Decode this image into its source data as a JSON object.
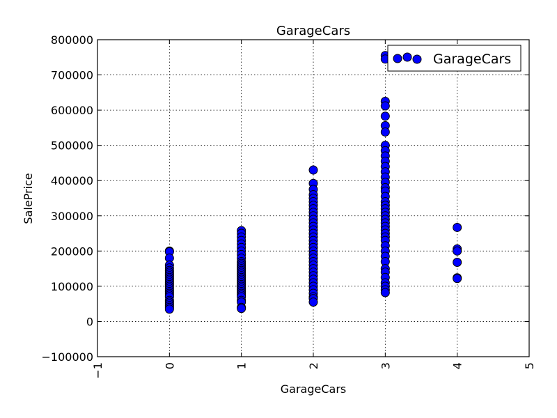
{
  "chart_data": {
    "type": "scatter",
    "title": "GarageCars",
    "xlabel": "GarageCars",
    "ylabel": "SalePrice",
    "xlim": [
      -1,
      5
    ],
    "ylim": [
      -100000,
      800000
    ],
    "xticks": [
      -1,
      0,
      1,
      2,
      3,
      4,
      5
    ],
    "yticks": [
      -100000,
      0,
      100000,
      200000,
      300000,
      400000,
      500000,
      600000,
      700000,
      800000
    ],
    "xtick_labels": [
      "−1",
      "0",
      "1",
      "2",
      "3",
      "4",
      "5"
    ],
    "ytick_labels": [
      "−100000",
      "0",
      "100000",
      "200000",
      "300000",
      "400000",
      "500000",
      "600000",
      "700000",
      "800000"
    ],
    "grid": true,
    "legend_position": "top-right",
    "marker_color": "#0000ff",
    "marker_edge_color": "#000000",
    "series": [
      {
        "name": "GarageCars",
        "points": [
          [
            0,
            200000
          ],
          [
            0,
            198000
          ],
          [
            0,
            180000
          ],
          [
            0,
            160000
          ],
          [
            0,
            152000
          ],
          [
            0,
            145000
          ],
          [
            0,
            140000
          ],
          [
            0,
            135000
          ],
          [
            0,
            130000
          ],
          [
            0,
            125000
          ],
          [
            0,
            120000
          ],
          [
            0,
            115000
          ],
          [
            0,
            110000
          ],
          [
            0,
            105000
          ],
          [
            0,
            100000
          ],
          [
            0,
            95000
          ],
          [
            0,
            90000
          ],
          [
            0,
            85000
          ],
          [
            0,
            80000
          ],
          [
            0,
            75000
          ],
          [
            0,
            70000
          ],
          [
            0,
            60000
          ],
          [
            0,
            55000
          ],
          [
            0,
            50000
          ],
          [
            0,
            45000
          ],
          [
            0,
            40000
          ],
          [
            0,
            35000
          ],
          [
            1,
            258000
          ],
          [
            1,
            250000
          ],
          [
            1,
            240000
          ],
          [
            1,
            230000
          ],
          [
            1,
            220000
          ],
          [
            1,
            210000
          ],
          [
            1,
            200000
          ],
          [
            1,
            190000
          ],
          [
            1,
            180000
          ],
          [
            1,
            170000
          ],
          [
            1,
            165000
          ],
          [
            1,
            160000
          ],
          [
            1,
            155000
          ],
          [
            1,
            150000
          ],
          [
            1,
            145000
          ],
          [
            1,
            140000
          ],
          [
            1,
            135000
          ],
          [
            1,
            130000
          ],
          [
            1,
            125000
          ],
          [
            1,
            120000
          ],
          [
            1,
            115000
          ],
          [
            1,
            110000
          ],
          [
            1,
            105000
          ],
          [
            1,
            100000
          ],
          [
            1,
            95000
          ],
          [
            1,
            90000
          ],
          [
            1,
            85000
          ],
          [
            1,
            80000
          ],
          [
            1,
            75000
          ],
          [
            1,
            70000
          ],
          [
            1,
            60000
          ],
          [
            1,
            55000
          ],
          [
            1,
            40000
          ],
          [
            1,
            37000
          ],
          [
            2,
            430000
          ],
          [
            2,
            392000
          ],
          [
            2,
            375000
          ],
          [
            2,
            360000
          ],
          [
            2,
            350000
          ],
          [
            2,
            340000
          ],
          [
            2,
            330000
          ],
          [
            2,
            320000
          ],
          [
            2,
            310000
          ],
          [
            2,
            300000
          ],
          [
            2,
            290000
          ],
          [
            2,
            280000
          ],
          [
            2,
            270000
          ],
          [
            2,
            260000
          ],
          [
            2,
            250000
          ],
          [
            2,
            240000
          ],
          [
            2,
            230000
          ],
          [
            2,
            220000
          ],
          [
            2,
            210000
          ],
          [
            2,
            200000
          ],
          [
            2,
            190000
          ],
          [
            2,
            180000
          ],
          [
            2,
            170000
          ],
          [
            2,
            160000
          ],
          [
            2,
            150000
          ],
          [
            2,
            140000
          ],
          [
            2,
            130000
          ],
          [
            2,
            120000
          ],
          [
            2,
            110000
          ],
          [
            2,
            100000
          ],
          [
            2,
            90000
          ],
          [
            2,
            80000
          ],
          [
            2,
            70000
          ],
          [
            2,
            65000
          ],
          [
            2,
            55000
          ],
          [
            3,
            755000
          ],
          [
            3,
            745000
          ],
          [
            3,
            625000
          ],
          [
            3,
            612000
          ],
          [
            3,
            583000
          ],
          [
            3,
            556000
          ],
          [
            3,
            538000
          ],
          [
            3,
            500000
          ],
          [
            3,
            485000
          ],
          [
            3,
            470000
          ],
          [
            3,
            455000
          ],
          [
            3,
            440000
          ],
          [
            3,
            425000
          ],
          [
            3,
            410000
          ],
          [
            3,
            395000
          ],
          [
            3,
            380000
          ],
          [
            3,
            370000
          ],
          [
            3,
            355000
          ],
          [
            3,
            340000
          ],
          [
            3,
            330000
          ],
          [
            3,
            320000
          ],
          [
            3,
            310000
          ],
          [
            3,
            300000
          ],
          [
            3,
            290000
          ],
          [
            3,
            280000
          ],
          [
            3,
            270000
          ],
          [
            3,
            260000
          ],
          [
            3,
            250000
          ],
          [
            3,
            240000
          ],
          [
            3,
            230000
          ],
          [
            3,
            215000
          ],
          [
            3,
            200000
          ],
          [
            3,
            185000
          ],
          [
            3,
            170000
          ],
          [
            3,
            150000
          ],
          [
            3,
            140000
          ],
          [
            3,
            125000
          ],
          [
            3,
            110000
          ],
          [
            3,
            100000
          ],
          [
            3,
            90000
          ],
          [
            3,
            82000
          ],
          [
            4,
            267000
          ],
          [
            4,
            206000
          ],
          [
            4,
            200000
          ],
          [
            4,
            168000
          ],
          [
            4,
            124000
          ],
          [
            4,
            122000
          ]
        ]
      }
    ]
  }
}
